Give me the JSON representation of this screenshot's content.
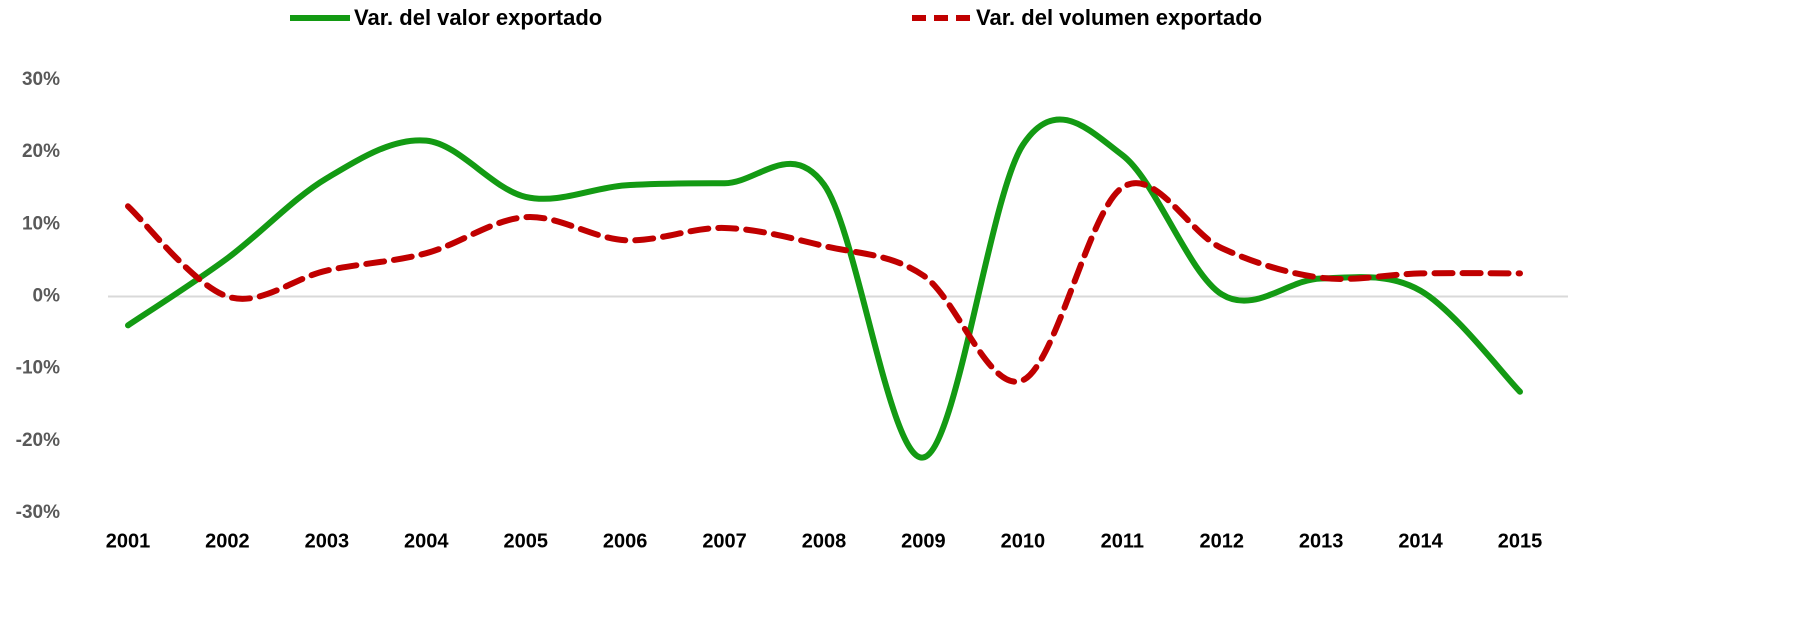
{
  "chart_data": {
    "type": "line",
    "categories": [
      "2001",
      "2002",
      "2003",
      "2004",
      "2005",
      "2006",
      "2007",
      "2008",
      "2009",
      "2010",
      "2011",
      "2012",
      "2013",
      "2014",
      "2015"
    ],
    "series": [
      {
        "name": "Var. del valor exportado",
        "color": "#139a13",
        "dash": false,
        "values": [
          -4,
          5.3,
          16.4,
          21.6,
          13.8,
          15.4,
          15.7,
          15.5,
          -22.3,
          21,
          19.6,
          0.3,
          2.5,
          0.8,
          -13.2
        ]
      },
      {
        "name": "Var. del volumen exportado",
        "color": "#c00000",
        "dash": true,
        "values": [
          12.5,
          0,
          3.6,
          6,
          11,
          7.8,
          9.5,
          7,
          2.9,
          -11.6,
          15.1,
          6.7,
          2.6,
          3.2,
          3.2
        ]
      }
    ],
    "ylim": [
      -30,
      30
    ],
    "yticks": [
      {
        "value": -30,
        "label": "-30%"
      },
      {
        "value": -20,
        "label": "-20%"
      },
      {
        "value": -10,
        "label": "-10%"
      },
      {
        "value": 0,
        "label": "0%"
      },
      {
        "value": 10,
        "label": "10%"
      },
      {
        "value": 20,
        "label": "20%"
      },
      {
        "value": 30,
        "label": "30%"
      }
    ],
    "grid": false,
    "smooth": true,
    "legend": "top"
  }
}
